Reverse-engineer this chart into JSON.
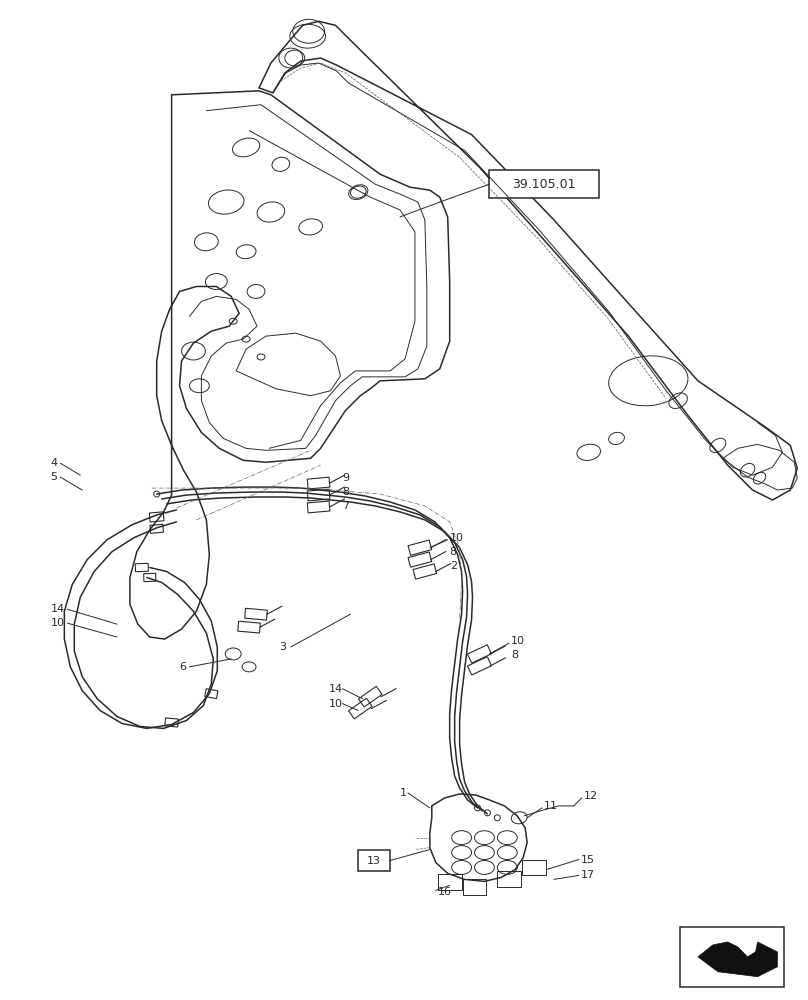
{
  "bg_color": "#ffffff",
  "line_color": "#2a2a2a",
  "ref_box_label": "39.105.01",
  "figsize": [
    8.08,
    10.0
  ],
  "dpi": 100,
  "nav_arrow_color": "#111111"
}
